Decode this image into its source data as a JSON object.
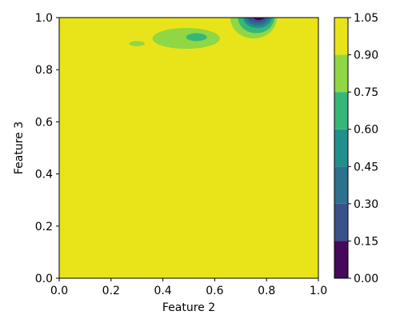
{
  "chart_data": {
    "type": "heatmap",
    "subtype": "filled-contour",
    "title": "",
    "xlabel": "Feature 2",
    "ylabel": "Feature 3",
    "xlim": [
      0.0,
      1.0
    ],
    "ylim": [
      0.0,
      1.0
    ],
    "xticks": [
      "0.0",
      "0.2",
      "0.4",
      "0.6",
      "0.8",
      "1.0"
    ],
    "yticks": [
      "0.0",
      "0.2",
      "0.4",
      "0.6",
      "0.8",
      "1.0"
    ],
    "grid": false,
    "colorbar": {
      "colormap": "viridis",
      "levels": [
        0.0,
        0.15,
        0.3,
        0.45,
        0.6,
        0.75,
        0.9,
        1.05
      ],
      "tick_labels": [
        "0.00",
        "0.15",
        "0.30",
        "0.45",
        "0.60",
        "0.75",
        "0.90",
        "1.05"
      ],
      "colors": [
        "#46085c",
        "#3a528b",
        "#2c718e",
        "#21908d",
        "#35b779",
        "#8fd744",
        "#e8e419"
      ]
    },
    "background_value_range": [
      0.9,
      1.05
    ],
    "regions": [
      {
        "value_range": [
          0.75,
          0.9
        ],
        "x": [
          0.27,
          0.33
        ],
        "y": [
          0.89,
          0.91
        ]
      },
      {
        "value_range": [
          0.75,
          0.9
        ],
        "x": [
          0.36,
          0.62
        ],
        "y": [
          0.88,
          0.96
        ]
      },
      {
        "value_range": [
          0.6,
          0.75
        ],
        "x": [
          0.49,
          0.57
        ],
        "y": [
          0.91,
          0.94
        ]
      },
      {
        "value_range": [
          0.75,
          0.9
        ],
        "x": [
          0.66,
          0.84
        ],
        "y": [
          0.92,
          1.0
        ]
      },
      {
        "value_range": [
          0.6,
          0.75
        ],
        "x": [
          0.69,
          0.83
        ],
        "y": [
          0.94,
          1.0
        ]
      },
      {
        "value_range": [
          0.45,
          0.6
        ],
        "x": [
          0.71,
          0.82
        ],
        "y": [
          0.96,
          1.0
        ]
      },
      {
        "value_range": [
          0.3,
          0.45
        ],
        "x": [
          0.72,
          0.81
        ],
        "y": [
          0.97,
          1.0
        ]
      },
      {
        "value_range": [
          0.15,
          0.3
        ],
        "x": [
          0.73,
          0.8
        ],
        "y": [
          0.98,
          1.0
        ]
      },
      {
        "value_range": [
          0.0,
          0.15
        ],
        "x": [
          0.75,
          0.79
        ],
        "y": [
          0.99,
          1.0
        ]
      }
    ]
  }
}
